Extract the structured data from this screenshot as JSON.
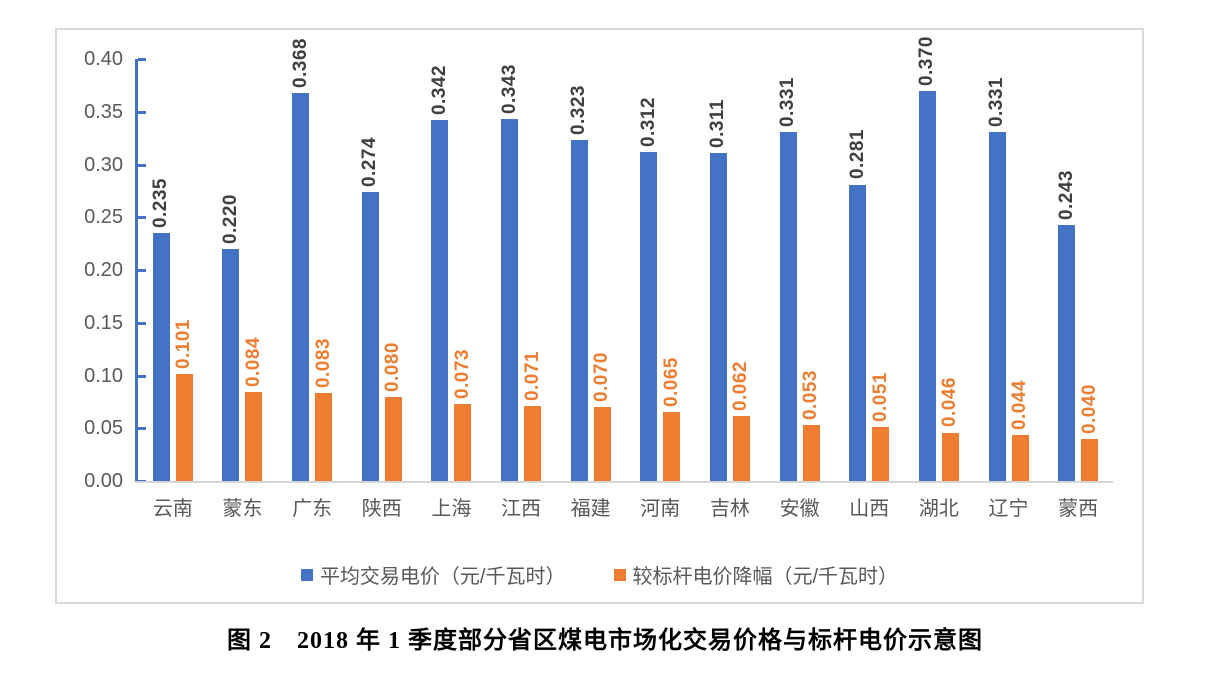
{
  "caption": "图 2　2018 年 1 季度部分省区煤电市场化交易价格与标杆电价示意图",
  "legend": {
    "series1_label": "平均交易电价（元/千瓦时）",
    "series2_label": "较标杆电价降幅（元/千瓦时）"
  },
  "colors": {
    "series1": "#4472c4",
    "series2": "#ed7d31",
    "series1_value_label": "#3f3f3f",
    "series2_value_label": "#ed7d31",
    "axis": "#4472c4",
    "tick_labels": "#595959",
    "baseline": "#d6d6d6",
    "frame_border": "#d9d9d9"
  },
  "chart_data": {
    "type": "bar",
    "title": "",
    "xlabel": "",
    "ylabel": "",
    "categories": [
      "云南",
      "蒙东",
      "广东",
      "陕西",
      "上海",
      "江西",
      "福建",
      "河南",
      "吉林",
      "安徽",
      "山西",
      "湖北",
      "辽宁",
      "蒙西"
    ],
    "series": [
      {
        "name": "平均交易电价（元/千瓦时）",
        "color": "#4472c4",
        "label_color": "#3f3f3f",
        "values": [
          0.235,
          0.22,
          0.368,
          0.274,
          0.342,
          0.343,
          0.323,
          0.312,
          0.311,
          0.331,
          0.281,
          0.37,
          0.331,
          0.243
        ]
      },
      {
        "name": "较标杆电价降幅（元/千瓦时）",
        "color": "#ed7d31",
        "label_color": "#ed7d31",
        "values": [
          0.101,
          0.084,
          0.083,
          0.08,
          0.073,
          0.071,
          0.07,
          0.065,
          0.062,
          0.053,
          0.051,
          0.046,
          0.044,
          0.04
        ]
      }
    ],
    "ylim": [
      0.0,
      0.4
    ],
    "ytick_step": 0.05,
    "ytick_decimals": 2,
    "value_label_decimals": 3,
    "value_labels_rotated": true,
    "grid": false,
    "legend_position": "bottom"
  }
}
